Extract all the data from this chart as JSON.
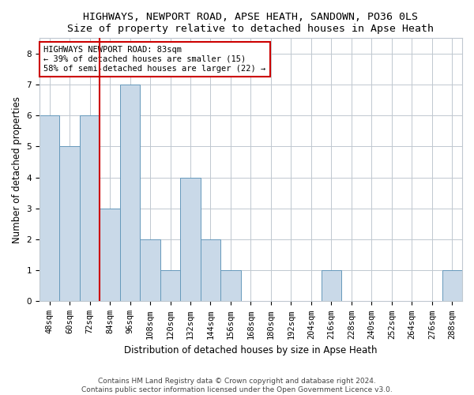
{
  "title": "HIGHWAYS, NEWPORT ROAD, APSE HEATH, SANDOWN, PO36 0LS",
  "subtitle": "Size of property relative to detached houses in Apse Heath",
  "xlabel": "Distribution of detached houses by size in Apse Heath",
  "ylabel": "Number of detached properties",
  "categories": [
    "48sqm",
    "60sqm",
    "72sqm",
    "84sqm",
    "96sqm",
    "108sqm",
    "120sqm",
    "132sqm",
    "144sqm",
    "156sqm",
    "168sqm",
    "180sqm",
    "192sqm",
    "204sqm",
    "216sqm",
    "228sqm",
    "240sqm",
    "252sqm",
    "264sqm",
    "276sqm",
    "288sqm"
  ],
  "values": [
    6,
    5,
    6,
    3,
    7,
    2,
    1,
    4,
    2,
    1,
    0,
    0,
    0,
    0,
    1,
    0,
    0,
    0,
    0,
    0,
    1
  ],
  "bar_color": "#c9d9e8",
  "bar_edge_color": "#6699bb",
  "subject_line_color": "#cc0000",
  "subject_bar_index": 3,
  "annotation_text": "HIGHWAYS NEWPORT ROAD: 83sqm\n← 39% of detached houses are smaller (15)\n58% of semi-detached houses are larger (22) →",
  "annotation_box_color": "#ffffff",
  "annotation_box_edge_color": "#cc0000",
  "ylim": [
    0,
    8.5
  ],
  "yticks": [
    0,
    1,
    2,
    3,
    4,
    5,
    6,
    7,
    8
  ],
  "grid_color": "#c0c8d0",
  "footer1": "Contains HM Land Registry data © Crown copyright and database right 2024.",
  "footer2": "Contains public sector information licensed under the Open Government Licence v3.0.",
  "title_fontsize": 9.5,
  "xlabel_fontsize": 8.5,
  "ylabel_fontsize": 8.5,
  "tick_fontsize": 7.5,
  "annotation_fontsize": 7.5,
  "footer_fontsize": 6.5
}
